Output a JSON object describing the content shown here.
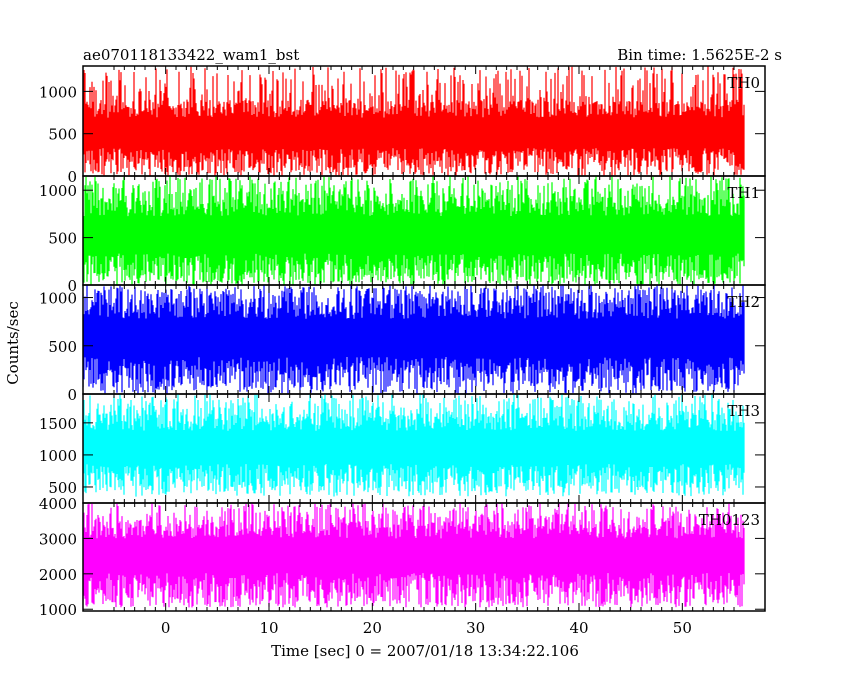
{
  "chart_data": {
    "type": "line",
    "title_left": "ae070118133422_wam1_bst",
    "title_right": "Bin time: 1.5625E-2 s",
    "xlabel": "Time [sec] 0 = 2007/01/18 13:34:22.106",
    "ylabel": "Counts/sec",
    "xlim": [
      -8,
      58
    ],
    "x_data_range": [
      -8,
      56
    ],
    "xticks": [
      0,
      10,
      20,
      30,
      40,
      50
    ],
    "grid": false,
    "panels": [
      {
        "name": "TH0",
        "color": "#ff0000",
        "ylim": [
          0,
          1300
        ],
        "yticks": [
          0,
          500,
          1000
        ],
        "mean": 480,
        "noise_low": 0,
        "noise_high": 1300,
        "inner_low": 100,
        "inner_high": 900
      },
      {
        "name": "TH1",
        "color": "#00ff00",
        "ylim": [
          0,
          1150
        ],
        "yticks": [
          0,
          500,
          1000
        ],
        "mean": 500,
        "noise_low": 0,
        "noise_high": 1150,
        "inner_low": 80,
        "inner_high": 950
      },
      {
        "name": "TH2",
        "color": "#0000ff",
        "ylim": [
          0,
          1130
        ],
        "yticks": [
          0,
          500,
          1000
        ],
        "mean": 560,
        "noise_low": 0,
        "noise_high": 1130,
        "inner_low": 120,
        "inner_high": 1000
      },
      {
        "name": "TH3",
        "color": "#00ffff",
        "ylim": [
          250,
          1950
        ],
        "yticks": [
          500,
          1000,
          1500
        ],
        "mean": 1100,
        "noise_low": 350,
        "noise_high": 1950,
        "inner_low": 500,
        "inner_high": 1650
      },
      {
        "name": "TH0123",
        "color": "#ff00ff",
        "ylim": [
          950,
          4000
        ],
        "yticks": [
          1000,
          2000,
          3000,
          4000
        ],
        "mean": 2500,
        "noise_low": 1050,
        "noise_high": 4000,
        "inner_low": 1300,
        "inner_high": 3500
      }
    ]
  }
}
